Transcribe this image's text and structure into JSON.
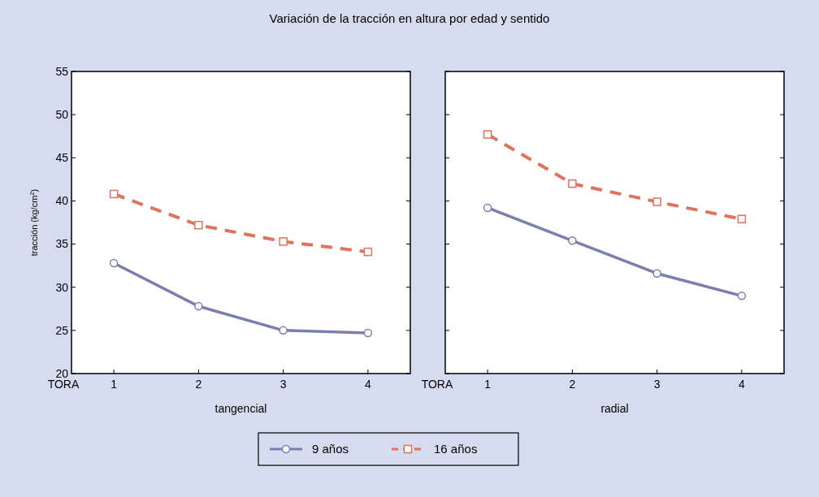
{
  "chart_data": [
    {
      "type": "line",
      "title": "Variación de la tracción en altura por edad y sentido",
      "xlabel": "tangencial",
      "ylabel": "tracción (kg/cm$^{2}$)",
      "annotations": [
        "TORA"
      ],
      "categories": [
        "1",
        "2",
        "3",
        "4"
      ],
      "ylim": [
        20,
        55
      ],
      "yticks": [
        20,
        25,
        30,
        35,
        40,
        45,
        50,
        55
      ],
      "legend": "bottom",
      "grid": false,
      "series": [
        {
          "name": "9 años",
          "color": "#7b7fb0",
          "values": [
            32.8,
            27.8,
            25.0,
            24.7
          ],
          "marker": "circle",
          "line_style": "solid"
        },
        {
          "name": "16 años",
          "color": "#e0735e",
          "values": [
            40.8,
            37.2,
            35.3,
            34.1
          ],
          "marker": "square",
          "line_style": "dashed"
        }
      ]
    },
    {
      "type": "line",
      "xlabel": "radial",
      "annotations": [
        "TORA"
      ],
      "categories": [
        "1",
        "2",
        "3",
        "4"
      ],
      "ylim": [
        20,
        55
      ],
      "yticks": [
        20,
        25,
        30,
        35,
        40,
        45,
        50,
        55
      ],
      "tick_labels": "x",
      "grid": false,
      "series": [
        {
          "color": "#7b7fb0",
          "values": [
            39.2,
            35.4,
            31.6,
            29.0
          ],
          "marker": "circle",
          "line_style": "solid"
        },
        {
          "color": "#e0735e",
          "values": [
            47.7,
            42.0,
            39.9,
            37.9
          ],
          "marker": "square",
          "line_style": "dashed"
        }
      ]
    }
  ]
}
